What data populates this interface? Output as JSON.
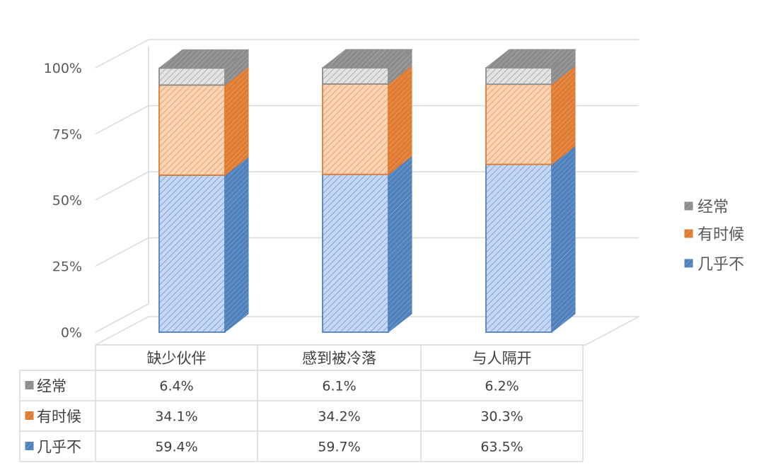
{
  "chart_data": {
    "type": "bar",
    "stacked": true,
    "style": "3d-100-percent-stacked-column",
    "categories": [
      "缺少伙伴",
      "感到被冷落",
      "与人隔开"
    ],
    "series": [
      {
        "name": "几乎不",
        "values": [
          59.4,
          59.7,
          63.5
        ],
        "labels": [
          "59.4%",
          "59.7%",
          "63.5%"
        ],
        "color": "#4f81bd",
        "face": "#c6d8f5"
      },
      {
        "name": "有时候",
        "values": [
          34.1,
          34.2,
          30.3
        ],
        "labels": [
          "34.1%",
          "34.2%",
          "30.3%"
        ],
        "color": "#e07b32",
        "face": "#fbd4b6"
      },
      {
        "name": "经常",
        "values": [
          6.4,
          6.1,
          6.2
        ],
        "labels": [
          "6.4%",
          "6.1%",
          "6.2%"
        ],
        "color": "#8c8c8c",
        "face": "#e3e3e3"
      }
    ],
    "y_ticks": [
      "0%",
      "25%",
      "50%",
      "75%",
      "100%"
    ],
    "ylim": [
      0,
      100
    ],
    "grid": true,
    "legend": "right",
    "data_table": true
  }
}
